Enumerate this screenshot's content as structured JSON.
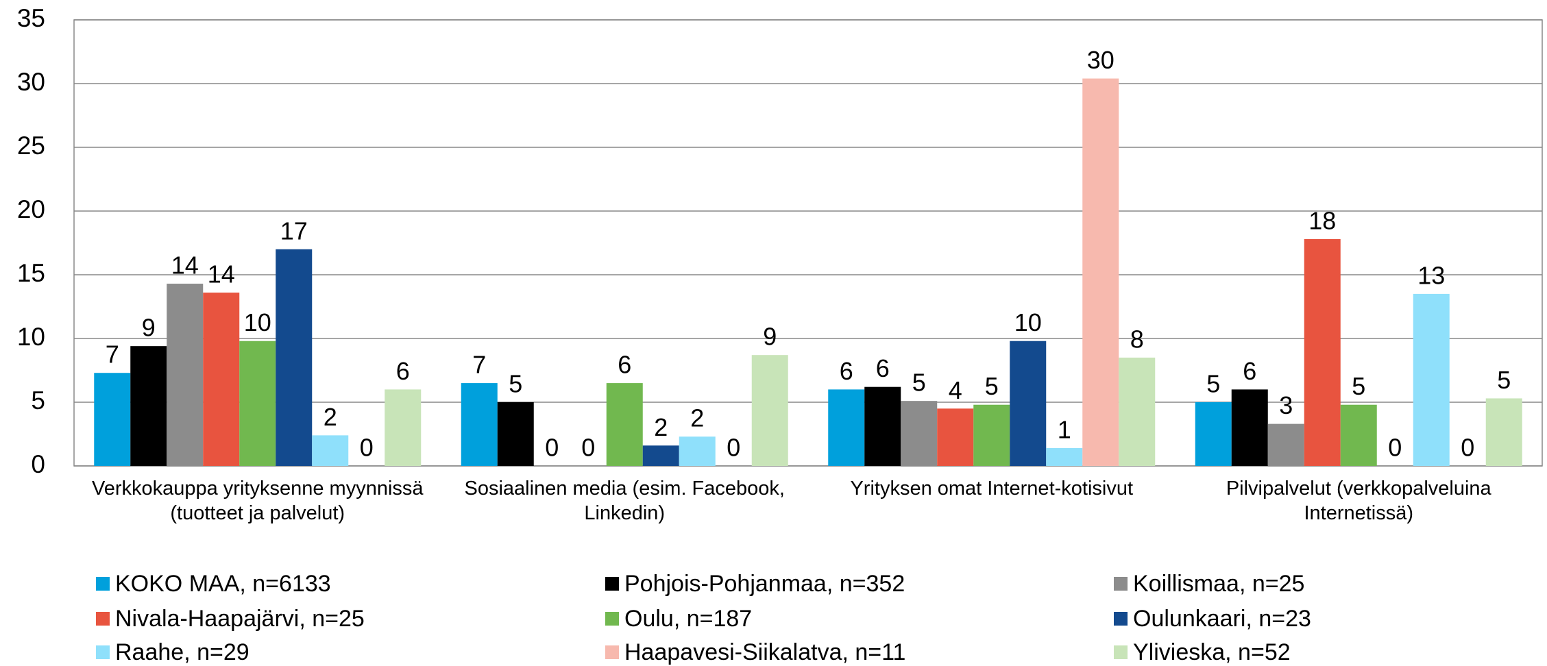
{
  "chart_data": {
    "type": "bar",
    "categories": [
      "Verkkokauppa yrityksenne myynnissä (tuotteet ja palvelut)",
      "Sosiaalinen media (esim. Facebook, Linkedin)",
      "Yrityksen omat Internet-kotisivut",
      "Pilvipalvelut  (verkkopalveluina Internetissä)"
    ],
    "series": [
      {
        "name": "KOKO MAA, n=6133",
        "color": "#00a0dc",
        "values": [
          7.3,
          6.5,
          6.0,
          5.0
        ],
        "value_labels": [
          "7",
          "7",
          "6",
          "5"
        ]
      },
      {
        "name": "Pohjois-Pohjanmaa, n=352",
        "color": "#000000",
        "values": [
          9.4,
          5.0,
          6.2,
          6.0
        ],
        "value_labels": [
          "9",
          "5",
          "6",
          "6"
        ]
      },
      {
        "name": "Koillismaa, n=25",
        "color": "#8c8c8c",
        "values": [
          14.3,
          0,
          5.1,
          3.3
        ],
        "value_labels": [
          "14",
          "0",
          "5",
          "3"
        ]
      },
      {
        "name": "Nivala-Haapajärvi, n=25",
        "color": "#e8543f",
        "values": [
          13.6,
          0,
          4.5,
          17.8
        ],
        "value_labels": [
          "14",
          "0",
          "4",
          "18"
        ]
      },
      {
        "name": "Oulu, n=187",
        "color": "#71b84f",
        "values": [
          9.8,
          6.5,
          4.8,
          4.8
        ],
        "value_labels": [
          "10",
          "6",
          "5",
          "5"
        ]
      },
      {
        "name": "Oulunkaari, n=23",
        "color": "#134a8e",
        "values": [
          17.0,
          1.6,
          9.8,
          0
        ],
        "value_labels": [
          "17",
          "2",
          "10",
          "0"
        ]
      },
      {
        "name": "Raahe, n=29",
        "color": "#8fe0fb",
        "values": [
          2.4,
          2.3,
          1.4,
          13.5
        ],
        "value_labels": [
          "2",
          "2",
          "1",
          "13"
        ]
      },
      {
        "name": "Haapavesi-Siikalatva, n=11",
        "color": "#f7b9ae",
        "values": [
          0,
          0,
          30.4,
          0
        ],
        "value_labels": [
          "0",
          "0",
          "30",
          "0"
        ]
      },
      {
        "name": "Ylivieska, n=52",
        "color": "#c8e4b8",
        "values": [
          6.0,
          8.7,
          8.5,
          5.3
        ],
        "value_labels": [
          "6",
          "9",
          "8",
          "5"
        ]
      }
    ],
    "ylim": [
      0,
      35
    ],
    "yticks": [
      0,
      5,
      10,
      15,
      20,
      25,
      30,
      35
    ],
    "grid": true,
    "legend": "bottom"
  }
}
